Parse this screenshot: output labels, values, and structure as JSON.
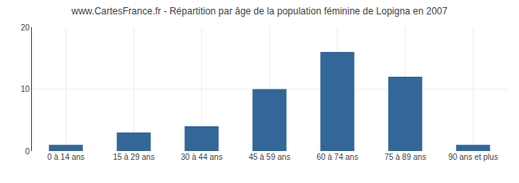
{
  "chart_data": {
    "type": "bar",
    "title": "www.CartesFrance.fr - Répartition par âge de la population féminine de Lopigna en 2007",
    "categories": [
      "0 à 14 ans",
      "15 à 29 ans",
      "30 à 44 ans",
      "45 à 59 ans",
      "60 à 74 ans",
      "75 à 89 ans",
      "90 ans et plus"
    ],
    "values": [
      1,
      3,
      4,
      10,
      16,
      12,
      1
    ],
    "color": "#336699",
    "ylim": [
      0,
      20
    ],
    "yticks": [
      0,
      10,
      20
    ],
    "grid": true
  }
}
